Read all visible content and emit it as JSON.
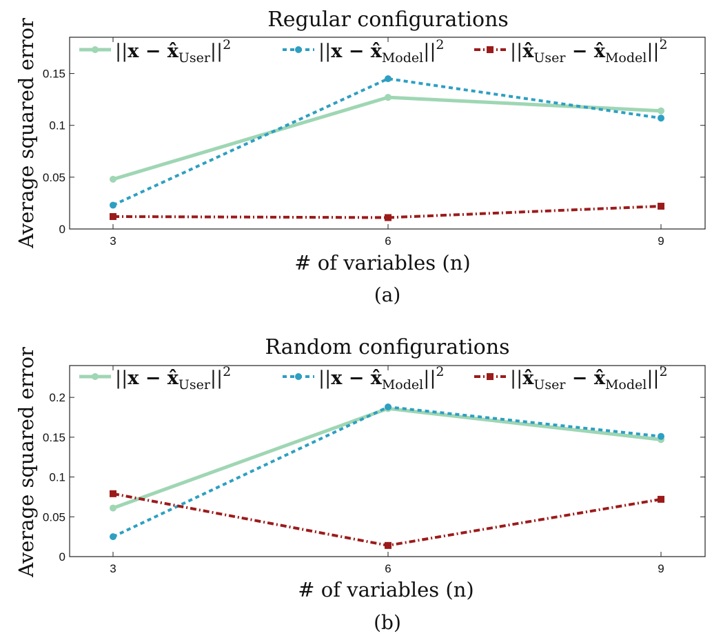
{
  "chart_data": [
    {
      "type": "line",
      "title": "Regular configurations",
      "xlabel": "# of variables (n)",
      "ylabel": "Average squared error",
      "caption": "(a)",
      "x": [
        3,
        6,
        9
      ],
      "x_ticks": [
        "3",
        "6",
        "9"
      ],
      "y_ticks": [
        "0",
        "0.05",
        "0.1",
        "0.15"
      ],
      "ylim": [
        0,
        0.185
      ],
      "legend_position": "top",
      "series": [
        {
          "name": "||x − x̂User||2",
          "values": [
            0.048,
            0.127,
            0.114
          ],
          "color": "#9fd6b4",
          "style": "solid",
          "marker": "circle"
        },
        {
          "name": "||x − x̂Model||2",
          "values": [
            0.023,
            0.145,
            0.107
          ],
          "color": "#2e9fc2",
          "style": "dotted",
          "marker": "circle"
        },
        {
          "name": "||x̂User − x̂Model||2",
          "values": [
            0.012,
            0.011,
            0.022
          ],
          "color": "#9b1b1b",
          "style": "dashdot",
          "marker": "square"
        }
      ]
    },
    {
      "type": "line",
      "title": "Random configurations",
      "xlabel": "# of variables (n)",
      "ylabel": "Average squared error",
      "caption": "(b)",
      "x": [
        3,
        6,
        9
      ],
      "x_ticks": [
        "3",
        "6",
        "9"
      ],
      "y_ticks": [
        "0",
        "0.05",
        "0.1",
        "0.15",
        "0.2"
      ],
      "ylim": [
        0,
        0.24
      ],
      "legend_position": "top",
      "series": [
        {
          "name": "||x − x̂User||2",
          "values": [
            0.061,
            0.186,
            0.147
          ],
          "color": "#9fd6b4",
          "style": "solid",
          "marker": "circle"
        },
        {
          "name": "||x − x̂Model||2",
          "values": [
            0.025,
            0.188,
            0.151
          ],
          "color": "#2e9fc2",
          "style": "dotted",
          "marker": "circle"
        },
        {
          "name": "||x̂User − x̂Model||2",
          "values": [
            0.079,
            0.014,
            0.072
          ],
          "color": "#9b1b1b",
          "style": "dashdot",
          "marker": "square"
        }
      ]
    }
  ],
  "legend_parts": [
    {
      "pre": "||",
      "main": "x − x̂",
      "sub": "User",
      "post": "||",
      "sup": "2"
    },
    {
      "pre": "||",
      "main": "x − x̂",
      "sub": "Model",
      "post": "||",
      "sup": "2"
    },
    {
      "pre": "||",
      "main": "x̂",
      "sub": "User",
      "mid": " − x̂",
      "sub2": "Model",
      "post": "||",
      "sup": "2"
    }
  ]
}
